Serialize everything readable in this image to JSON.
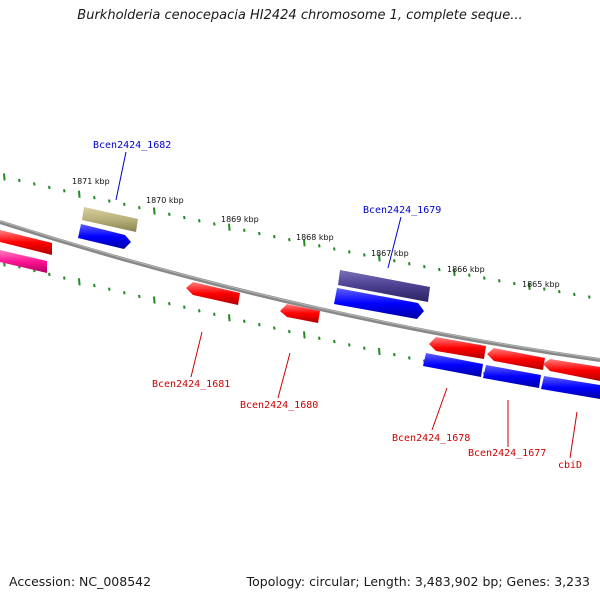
{
  "title": "Burkholderia cenocepacia HI2424 chromosome 1, complete seque...",
  "footer": {
    "accession": "Accession: NC_008542",
    "summary": "Topology: circular; Length: 3,483,902 bp; Genes: 3,233"
  },
  "colors": {
    "background": "#ffffff",
    "backbone": "#8a8a8a",
    "tick": "#1f8a1f",
    "label_blue": "#0000cc",
    "label_red": "#cc0000"
  },
  "kbp_labels": [
    "1871 kbp",
    "1870 kbp",
    "1869 kbp",
    "1868 kbp",
    "1867 kbp",
    "1866 kbp",
    "1865 kbp"
  ],
  "genes": [
    {
      "id": "left-red",
      "label": "",
      "strand": "forward",
      "color": "#ff0000"
    },
    {
      "id": "left-magenta",
      "label": "",
      "strand": "forward",
      "color": "#ff1493"
    },
    {
      "id": "bcen2424_1682",
      "label": "Bcen2424_1682",
      "strand": "forward",
      "color": "#b8b07a",
      "label_color": "#0000cc"
    },
    {
      "id": "bcen2424_1682_cds",
      "label": "",
      "strand": "forward",
      "color": "#0000ff"
    },
    {
      "id": "bcen2424_1679",
      "label": "Bcen2424_1679",
      "strand": "forward",
      "color": "#4b3f8f",
      "label_color": "#0000cc"
    },
    {
      "id": "bcen2424_1679_cds",
      "label": "",
      "strand": "forward",
      "color": "#0000ff"
    },
    {
      "id": "bcen2424_1681",
      "label": "Bcen2424_1681",
      "strand": "reverse",
      "color": "#ff0000",
      "label_color": "#cc0000"
    },
    {
      "id": "bcen2424_1680",
      "label": "Bcen2424_1680",
      "strand": "reverse",
      "color": "#ff0000",
      "label_color": "#cc0000"
    },
    {
      "id": "bcen2424_1678",
      "label": "Bcen2424_1678",
      "strand": "reverse",
      "color": "#ff0000",
      "label_color": "#cc0000"
    },
    {
      "id": "bcen2424_1677",
      "label": "Bcen2424_1677",
      "strand": "reverse",
      "color": "#ff0000",
      "label_color": "#cc0000"
    },
    {
      "id": "cbid",
      "label": "cbiD",
      "strand": "reverse",
      "color": "#ff0000",
      "label_color": "#cc0000"
    },
    {
      "id": "blue-cds-1678",
      "label": "",
      "strand": "reverse",
      "color": "#0000ff"
    },
    {
      "id": "blue-cds-1677",
      "label": "",
      "strand": "reverse",
      "color": "#0000ff"
    },
    {
      "id": "blue-cds-cbid",
      "label": "",
      "strand": "reverse",
      "color": "#0000ff"
    }
  ]
}
